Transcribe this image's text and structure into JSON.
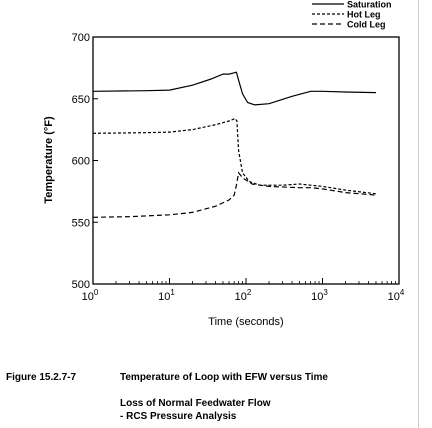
{
  "chart_data": {
    "type": "line",
    "title": "",
    "xlabel": "Time (seconds)",
    "ylabel": "Temperature (°F)",
    "xscale": "log",
    "xlim": [
      1,
      10000
    ],
    "ylim": [
      500,
      700
    ],
    "x_ticks": [
      1,
      10,
      100,
      1000,
      10000
    ],
    "x_tick_labels": [
      {
        "base": "10",
        "exp": "0"
      },
      {
        "base": "10",
        "exp": "1"
      },
      {
        "base": "10",
        "exp": "2"
      },
      {
        "base": "10",
        "exp": "3"
      },
      {
        "base": "10",
        "exp": "4"
      }
    ],
    "y_ticks": [
      500,
      550,
      600,
      650,
      700
    ],
    "y_tick_labels": [
      "500",
      "550",
      "600",
      "650",
      "700"
    ],
    "legend_position": "top-right, outside plot",
    "grid": false,
    "series": [
      {
        "name": "Saturation",
        "style": "solid",
        "color": "#000000",
        "points": [
          [
            1,
            656
          ],
          [
            5,
            656.5
          ],
          [
            10,
            657
          ],
          [
            20,
            661
          ],
          [
            35,
            666
          ],
          [
            50,
            670
          ],
          [
            60,
            670
          ],
          [
            70,
            671
          ],
          [
            75,
            671.5
          ],
          [
            80,
            665
          ],
          [
            90,
            654
          ],
          [
            105,
            647
          ],
          [
            130,
            645
          ],
          [
            200,
            646
          ],
          [
            400,
            652
          ],
          [
            700,
            656
          ],
          [
            1000,
            656
          ],
          [
            2000,
            655.5
          ],
          [
            5000,
            655
          ]
        ]
      },
      {
        "name": "Hot Leg",
        "style": "dashed",
        "color": "#000000",
        "points": [
          [
            1,
            622
          ],
          [
            5,
            622.5
          ],
          [
            10,
            623
          ],
          [
            20,
            625
          ],
          [
            40,
            629
          ],
          [
            60,
            632
          ],
          [
            72,
            634
          ],
          [
            76,
            632
          ],
          [
            80,
            608
          ],
          [
            90,
            590
          ],
          [
            110,
            583
          ],
          [
            150,
            580
          ],
          [
            300,
            580
          ],
          [
            500,
            581
          ],
          [
            700,
            580
          ],
          [
            1000,
            579
          ],
          [
            2000,
            576
          ],
          [
            5000,
            573
          ]
        ]
      },
      {
        "name": "Cold Leg",
        "style": "dashed",
        "color": "#000000",
        "points": [
          [
            1,
            554
          ],
          [
            3,
            554.5
          ],
          [
            10,
            556
          ],
          [
            20,
            558
          ],
          [
            40,
            563
          ],
          [
            60,
            568
          ],
          [
            70,
            572
          ],
          [
            75,
            580
          ],
          [
            80,
            590
          ],
          [
            90,
            586
          ],
          [
            120,
            581
          ],
          [
            200,
            579
          ],
          [
            500,
            578
          ],
          [
            700,
            578
          ],
          [
            1000,
            577
          ],
          [
            2000,
            574
          ],
          [
            5000,
            572
          ]
        ]
      }
    ]
  },
  "figure": {
    "number": "Figure 15.2.7-7",
    "caption": "Temperature of Loop with EFW versus Time",
    "event": "Loss of Normal Feedwater Flow",
    "analysis": "- RCS Pressure Analysis"
  }
}
